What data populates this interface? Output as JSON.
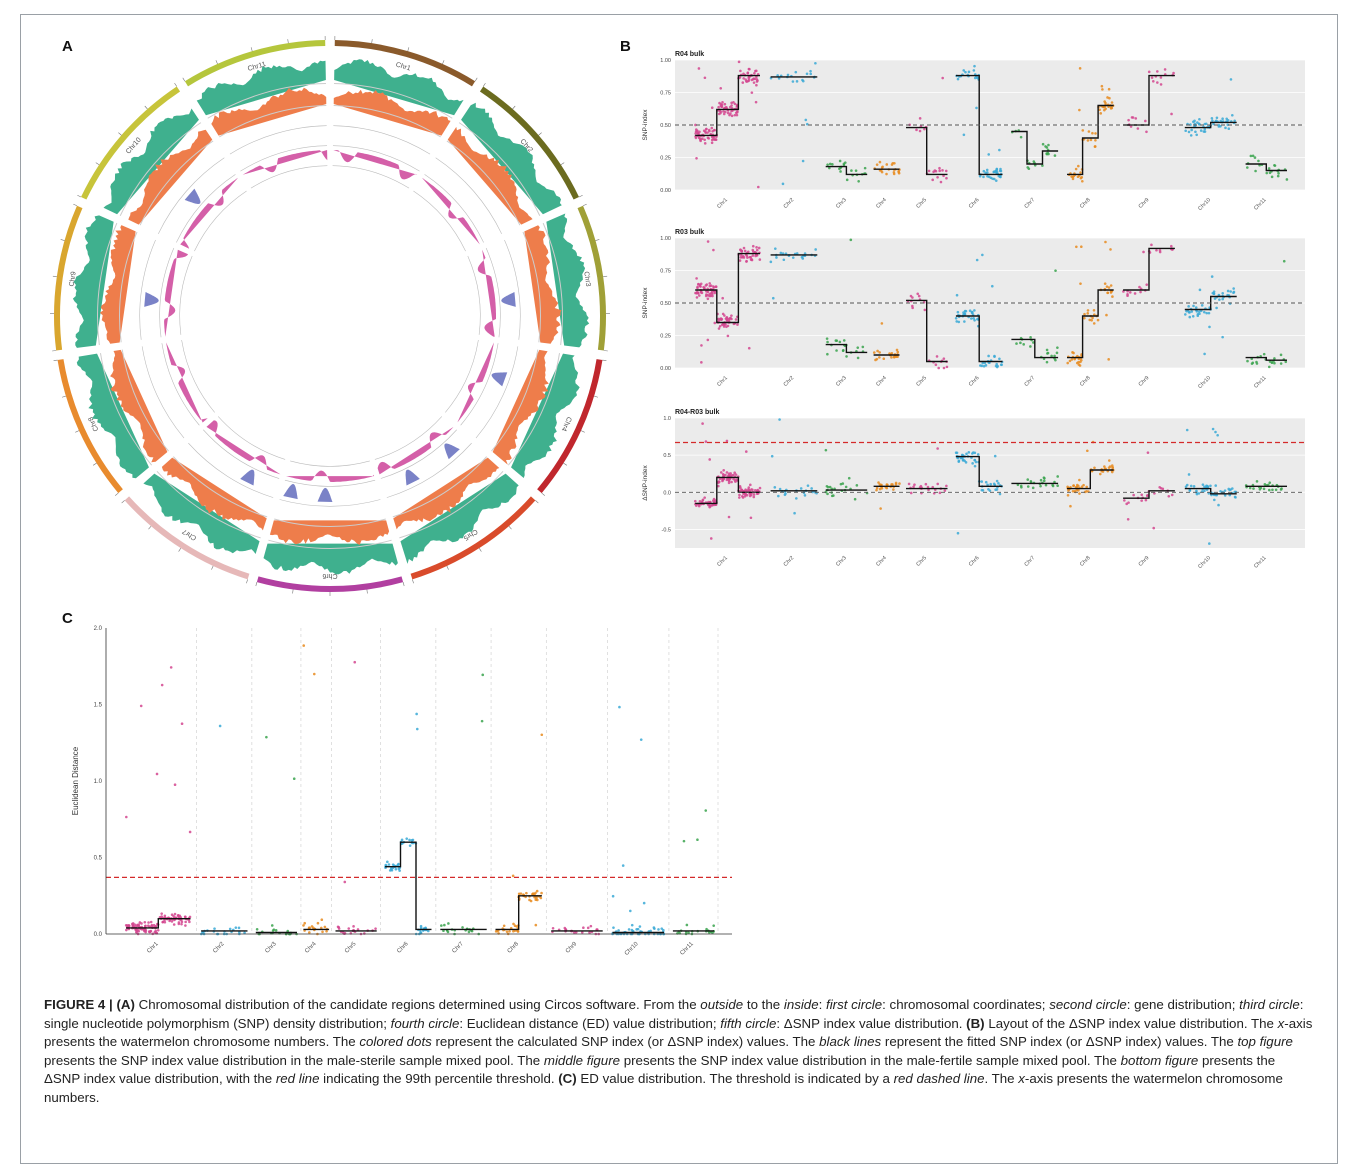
{
  "panel_letters": {
    "a": "A",
    "b": "B",
    "c": "C"
  },
  "circos": {
    "chromosomes": [
      "Chr1",
      "Chr2",
      "Chr3",
      "Chr4",
      "Chr5",
      "Chr6",
      "Chr7",
      "Chr8",
      "Chr9",
      "Chr10",
      "Chr11"
    ],
    "chromosome_colors": [
      "#8a5a2b",
      "#6b6b1f",
      "#a0a037",
      "#c0272d",
      "#d94b2b",
      "#b13fa0",
      "#e6b8b8",
      "#e88b2e",
      "#d9a62e",
      "#c7c43a",
      "#b5c63c"
    ],
    "track_colors": {
      "gene": "#3fb08e",
      "snp_density": "#ee7d4b",
      "ed": "#7a82c7",
      "delta_snp": "#d45fa8"
    }
  },
  "chart_data": [
    {
      "type": "scatter",
      "title": "R04 bulk",
      "ylabel": "SNP-index",
      "ylim": [
        0,
        1
      ],
      "y_ticks": [
        "0.00",
        "0.25",
        "0.50",
        "0.75",
        "1.00"
      ],
      "categories": [
        "Chr1",
        "Chr2",
        "Chr3",
        "Chr4",
        "Chr5",
        "Chr6",
        "Chr7",
        "Chr8",
        "Chr9",
        "Chr10",
        "Chr11"
      ],
      "reference_line": 0.5,
      "fitted_levels": [
        [
          0.42,
          0.62,
          0.88
        ],
        [
          0.87
        ],
        [
          0.18,
          0.12
        ],
        [
          0.16
        ],
        [
          0.48,
          0.12
        ],
        [
          0.88,
          0.12
        ],
        [
          0.45,
          0.2,
          0.3
        ],
        [
          0.12,
          0.4,
          0.65
        ],
        [
          0.5,
          0.88
        ],
        [
          0.48,
          0.52
        ],
        [
          0.2,
          0.15
        ]
      ]
    },
    {
      "type": "scatter",
      "title": "R03 bulk",
      "ylabel": "SNP-index",
      "ylim": [
        0,
        1
      ],
      "y_ticks": [
        "0.00",
        "0.25",
        "0.50",
        "0.75",
        "1.00"
      ],
      "categories": [
        "Chr1",
        "Chr2",
        "Chr3",
        "Chr4",
        "Chr5",
        "Chr6",
        "Chr7",
        "Chr8",
        "Chr9",
        "Chr10",
        "Chr11"
      ],
      "reference_line": 0.5,
      "fitted_levels": [
        [
          0.6,
          0.35,
          0.88
        ],
        [
          0.87
        ],
        [
          0.18,
          0.12
        ],
        [
          0.1
        ],
        [
          0.52,
          0.05
        ],
        [
          0.4,
          0.05
        ],
        [
          0.22,
          0.08
        ],
        [
          0.08,
          0.4,
          0.6
        ],
        [
          0.6,
          0.92
        ],
        [
          0.45,
          0.55
        ],
        [
          0.08,
          0.06
        ]
      ]
    },
    {
      "type": "scatter",
      "title": "R04-R03 bulk",
      "ylabel": "ΔSNP-index",
      "ylim": [
        -0.75,
        1
      ],
      "y_ticks": [
        "-0.5",
        "0.0",
        "0.5",
        "1.0"
      ],
      "categories": [
        "Chr1",
        "Chr2",
        "Chr3",
        "Chr4",
        "Chr5",
        "Chr6",
        "Chr7",
        "Chr8",
        "Chr9",
        "Chr10",
        "Chr11"
      ],
      "reference_line": 0.0,
      "threshold": 0.67,
      "fitted_levels": [
        [
          -0.15,
          0.2,
          0.0
        ],
        [
          0.02
        ],
        [
          0.03
        ],
        [
          0.08
        ],
        [
          0.05
        ],
        [
          0.48,
          0.08
        ],
        [
          0.12
        ],
        [
          0.05,
          0.3
        ],
        [
          -0.08,
          0.02
        ],
        [
          0.05,
          -0.02
        ],
        [
          0.08
        ]
      ]
    },
    {
      "type": "scatter",
      "title": "",
      "ylabel": "Euclidean Distance",
      "ylim": [
        0,
        2
      ],
      "y_ticks": [
        "0.0",
        "0.5",
        "1.0",
        "1.5",
        "2.0"
      ],
      "categories": [
        "Chr1",
        "Chr2",
        "Chr3",
        "Chr4",
        "Chr5",
        "Chr6",
        "Chr7",
        "Chr8",
        "Chr9",
        "Chr10",
        "Chr11"
      ],
      "threshold": 0.37,
      "fitted_levels": [
        [
          0.04,
          0.1
        ],
        [
          0.02
        ],
        [
          0.01
        ],
        [
          0.03
        ],
        [
          0.02
        ],
        [
          0.44,
          0.6,
          0.03
        ],
        [
          0.03
        ],
        [
          0.03,
          0.25
        ],
        [
          0.02
        ],
        [
          0.01
        ],
        [
          0.02
        ]
      ]
    }
  ],
  "caption": {
    "figure_label": "FIGURE 4 | ",
    "a_tag": "(A)",
    "a_text_1": " Chromosomal distribution of the candidate regions determined using Circos software. From the ",
    "a_outside": "outside",
    "a_text_2": " to the ",
    "a_inside": "inside",
    "a_text_3": ": ",
    "c1": "first circle",
    "c1_text": ": chromosomal coordinates; ",
    "c2": "second circle",
    "c2_text": ": gene distribution; ",
    "c3": "third circle",
    "c3_text": ": single nucleotide polymorphism (SNP) density distribution; ",
    "c4": "fourth circle",
    "c4_text": ": Euclidean distance (ED) value distribution; ",
    "c5": "fifth circle",
    "c5_text": ": ΔSNP index value distribution. ",
    "b_tag": "(B)",
    "b_text_1": " Layout of the ΔSNP index value distribution. The ",
    "b_xaxis": "x",
    "b_text_2": "-axis presents the watermelon chromosome numbers. The ",
    "b_colored": "colored dots",
    "b_text_3": " represent the calculated SNP index (or ΔSNP index) values. The ",
    "b_black": "black lines",
    "b_text_4": " represent the fitted SNP index (or ΔSNP index) values. The ",
    "b_top": "top figure",
    "b_text_5": " presents the SNP index value distribution in the male-sterile sample mixed pool. The ",
    "b_middle": "middle figure",
    "b_text_6": " presents the SNP index value distribution in the male-fertile sample mixed pool. The ",
    "b_bottom": "bottom figure",
    "b_text_7": " presents the ΔSNP index value distribution, with the ",
    "b_red": "red line",
    "b_text_8": " indicating the 99th percentile threshold. ",
    "c_tag": "(C)",
    "c_text_1": " ED value distribution. The threshold is indicated by a ",
    "c_red": "red dashed line",
    "c_text_2": ". The ",
    "c_xaxis": "x",
    "c_text_3": "-axis presents the watermelon chromosome numbers."
  }
}
